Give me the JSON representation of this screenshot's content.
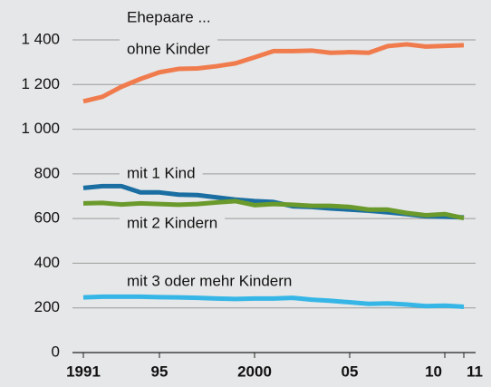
{
  "chart_data": {
    "type": "line",
    "title": "Ehepaare ...",
    "x": [
      1991,
      1992,
      1993,
      1994,
      1995,
      1996,
      1997,
      1998,
      1999,
      2000,
      2001,
      2002,
      2003,
      2004,
      2005,
      2006,
      2007,
      2008,
      2009,
      2010,
      2011
    ],
    "xlim": [
      1991,
      2011
    ],
    "xticks": [
      1991,
      {
        "value": 1995,
        "label": "95"
      },
      2000,
      {
        "value": 2005,
        "label": "05"
      },
      {
        "value": 2010,
        "label": "10"
      },
      {
        "value": 2011,
        "label": "11"
      }
    ],
    "ylim": [
      0,
      1400
    ],
    "yticks": [
      0,
      200,
      400,
      600,
      800,
      {
        "value": 1000,
        "label": "1 000"
      },
      {
        "value": 1200,
        "label": "1 200"
      },
      {
        "value": 1400,
        "label": "1 400"
      }
    ],
    "grid": true,
    "series": [
      {
        "name": "ohne Kinder",
        "color": "#f07c4e",
        "values": [
          1125,
          1145,
          1190,
          1225,
          1255,
          1270,
          1272,
          1282,
          1295,
          1322,
          1350,
          1350,
          1352,
          1342,
          1345,
          1342,
          1372,
          1380,
          1370,
          1373,
          1376
        ]
      },
      {
        "name": "mit 1 Kind",
        "color": "#1a6ea2",
        "values": [
          737,
          745,
          745,
          717,
          717,
          707,
          705,
          695,
          685,
          678,
          674,
          655,
          652,
          645,
          640,
          635,
          628,
          620,
          610,
          608,
          605
        ]
      },
      {
        "name": "mit 2 Kindern",
        "color": "#6b9a2c",
        "values": [
          668,
          670,
          663,
          668,
          665,
          662,
          665,
          672,
          678,
          660,
          665,
          662,
          657,
          657,
          652,
          640,
          640,
          625,
          615,
          620,
          602
        ]
      },
      {
        "name": "mit 3 oder mehr Kindern",
        "color": "#35b6e6",
        "values": [
          247,
          250,
          250,
          250,
          248,
          247,
          245,
          242,
          240,
          242,
          242,
          245,
          237,
          232,
          225,
          218,
          220,
          215,
          208,
          210,
          205
        ]
      }
    ]
  }
}
